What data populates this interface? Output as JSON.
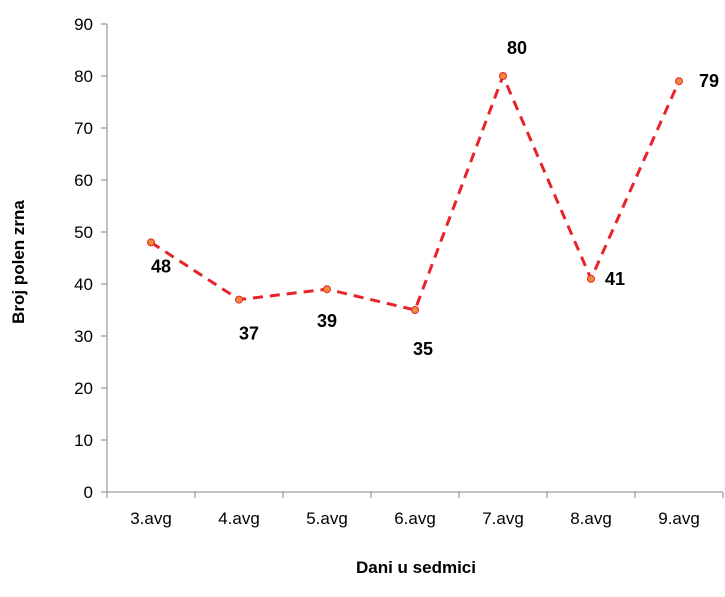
{
  "chart_data": {
    "type": "line",
    "categories": [
      "3.avg",
      "4.avg",
      "5.avg",
      "6.avg",
      "7.avg",
      "8.avg",
      "9.avg"
    ],
    "series": [
      {
        "values": [
          48,
          37,
          39,
          35,
          80,
          41,
          79
        ]
      }
    ],
    "data_labels": [
      "48",
      "37",
      "39",
      "35",
      "80",
      "41",
      "79"
    ],
    "xlabel": "Dani u sedmici",
    "ylabel": "Broj polen zrna",
    "ylim": [
      0,
      90
    ],
    "yticks": [
      "0",
      "10",
      "20",
      "30",
      "40",
      "50",
      "60",
      "70",
      "80",
      "90"
    ],
    "grid": false,
    "legend": "none",
    "line_color": "#e8242a",
    "line_style": "dashed",
    "marker_color": "#f08a3c"
  }
}
